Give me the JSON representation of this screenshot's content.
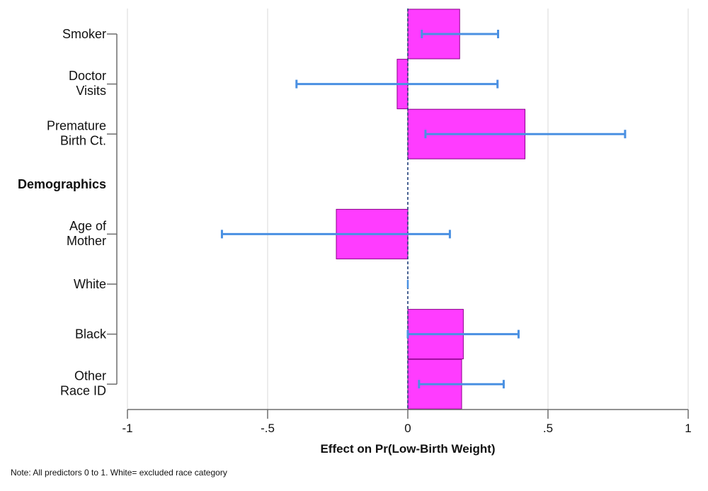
{
  "chart_data": {
    "type": "bar",
    "orientation": "horizontal",
    "xlabel": "Effect on Pr(Low-Birth Weight)",
    "xlim": [
      -1,
      1
    ],
    "x_ticks": [
      {
        "value": -1,
        "label": "-1"
      },
      {
        "value": -0.5,
        "label": "-.5"
      },
      {
        "value": 0,
        "label": "0"
      },
      {
        "value": 0.5,
        "label": ".5"
      },
      {
        "value": 1,
        "label": "1"
      }
    ],
    "grid": true,
    "reference_line": {
      "value": 0,
      "style": "dashed",
      "color": "#1f3f7a"
    },
    "colors": {
      "bar_fill": "#ff3cff",
      "bar_stroke": "#8a008a",
      "ci": "#4a90e2",
      "axis": "#6e6e6e",
      "grid": "#d9d9d9"
    },
    "rows": [
      {
        "label": [
          "Smoker"
        ],
        "value": 0.185,
        "ci": [
          0.05,
          0.322
        ],
        "header": false
      },
      {
        "label": [
          "Doctor",
          "Visits"
        ],
        "value": -0.038,
        "ci": [
          -0.397,
          0.32
        ],
        "header": false
      },
      {
        "label": [
          "Premature",
          "Birth Ct."
        ],
        "value": 0.418,
        "ci": [
          0.063,
          0.775
        ],
        "header": false
      },
      {
        "label": [
          "Demographics"
        ],
        "value": null,
        "ci": null,
        "header": true
      },
      {
        "label": [
          "Age of",
          "Mother"
        ],
        "value": -0.255,
        "ci": [
          -0.663,
          0.15
        ],
        "header": false
      },
      {
        "label": [
          "White"
        ],
        "value": 0.0,
        "ci": [
          0.0,
          0.0
        ],
        "header": false
      },
      {
        "label": [
          "Black"
        ],
        "value": 0.198,
        "ci": [
          0.0,
          0.395
        ],
        "header": false
      },
      {
        "label": [
          "Other",
          "Race ID"
        ],
        "value": 0.192,
        "ci": [
          0.04,
          0.342
        ],
        "header": false
      }
    ],
    "note": "Note: All predictors 0 to 1. White= excluded race category"
  }
}
